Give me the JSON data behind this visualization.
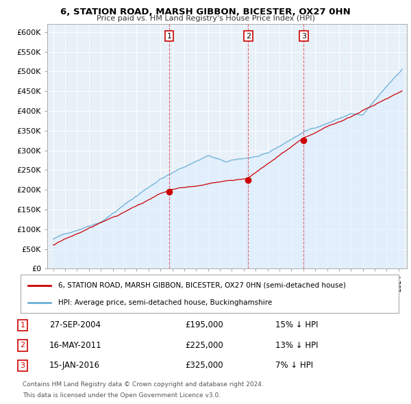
{
  "title": "6, STATION ROAD, MARSH GIBBON, BICESTER, OX27 0HN",
  "subtitle": "Price paid vs. HM Land Registry's House Price Index (HPI)",
  "legend_line1": "6, STATION ROAD, MARSH GIBBON, BICESTER, OX27 0HN (semi-detached house)",
  "legend_line2": "HPI: Average price, semi-detached house, Buckinghamshire",
  "footer1": "Contains HM Land Registry data © Crown copyright and database right 2024.",
  "footer2": "This data is licensed under the Open Government Licence v3.0.",
  "transactions": [
    {
      "num": "1",
      "date": "27-SEP-2004",
      "price": "£195,000",
      "pct": "15%",
      "dir": "↓",
      "year": 2004.75
    },
    {
      "num": "2",
      "date": "16-MAY-2011",
      "price": "£225,000",
      "pct": "13%",
      "dir": "↓",
      "year": 2011.37
    },
    {
      "num": "3",
      "date": "15-JAN-2016",
      "price": "£325,000",
      "pct": "7%",
      "dir": "↓",
      "year": 2016.04
    }
  ],
  "transaction_prices": [
    195000,
    225000,
    325000
  ],
  "hpi_color": "#6baed6",
  "hpi_fill_color": "#ddeeff",
  "price_color": "#cc0000",
  "vline_color": "#dd4444",
  "dot_color": "#cc0000",
  "background_color": "#ffffff",
  "plot_bg_color": "#e8f0f8",
  "grid_color": "#ffffff",
  "ylim": [
    0,
    620000
  ],
  "yticks": [
    0,
    50000,
    100000,
    150000,
    200000,
    250000,
    300000,
    350000,
    400000,
    450000,
    500000,
    550000,
    600000
  ],
  "xlim_start": 1994.5,
  "xlim_end": 2024.7
}
